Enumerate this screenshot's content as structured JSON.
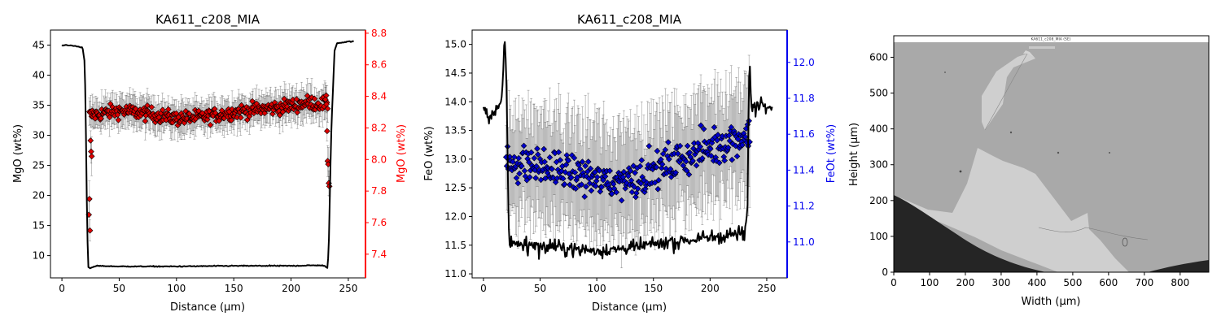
{
  "chart_data": [
    {
      "type": "line",
      "title": "KA611_c208_MIA",
      "xlabel": "Distance (µm)",
      "ylabel": "MgO (wt%)",
      "ylabel_right": "MgO (wt%)",
      "xlim": [
        -10,
        265
      ],
      "ylim": [
        6.3,
        47.5
      ],
      "ylim_right": [
        7.25,
        8.82
      ],
      "xticks": [
        0,
        50,
        100,
        150,
        200,
        250
      ],
      "yticks": [
        10,
        15,
        20,
        25,
        30,
        35,
        40,
        45
      ],
      "yticks_right": [
        7.4,
        7.6,
        7.8,
        8.0,
        8.2,
        8.4,
        8.6,
        8.8
      ],
      "right_axis_color": "#ff0000",
      "series": [
        {
          "axis": "left",
          "color": "#000000",
          "style": "line",
          "x": [
            0,
            10,
            18,
            20,
            21,
            22,
            23,
            25,
            30,
            50,
            100,
            150,
            200,
            225,
            229,
            231,
            232,
            233,
            235,
            238,
            240,
            250,
            255
          ],
          "y": [
            45.0,
            44.9,
            44.6,
            42.0,
            30.0,
            15.0,
            8.0,
            7.9,
            8.3,
            8.2,
            8.2,
            8.3,
            8.3,
            8.4,
            8.3,
            8.0,
            7.9,
            12.0,
            30.0,
            44.0,
            45.3,
            45.6,
            45.6
          ]
        },
        {
          "axis": "right",
          "color": "#dd0000",
          "style": "markers",
          "marker": "diamond",
          "errorbar_color": "#000000",
          "x_start": 24,
          "x_end": 232,
          "points": 330,
          "edge_points": [
            {
              "x": 23.5,
              "y": 7.65
            },
            {
              "x": 24.0,
              "y": 7.75
            },
            {
              "x": 24.5,
              "y": 7.55
            },
            {
              "x": 25.0,
              "y": 8.12
            },
            {
              "x": 25.5,
              "y": 8.05
            },
            {
              "x": 26.0,
              "y": 8.02
            },
            {
              "x": 230.0,
              "y": 8.38
            },
            {
              "x": 231.0,
              "y": 8.35
            },
            {
              "x": 231.5,
              "y": 8.18
            },
            {
              "x": 232.0,
              "y": 7.99
            },
            {
              "x": 232.5,
              "y": 7.97
            },
            {
              "x": 233.0,
              "y": 7.85
            },
            {
              "x": 233.5,
              "y": 7.83
            }
          ],
          "trend_x": [
            25,
            50,
            75,
            100,
            125,
            150,
            175,
            200,
            215,
            230
          ],
          "trend_y": [
            8.28,
            8.31,
            8.29,
            8.26,
            8.27,
            8.3,
            8.32,
            8.34,
            8.36,
            8.35
          ],
          "scatter_sd": 0.045,
          "error_sd": 0.09
        }
      ]
    },
    {
      "type": "line",
      "title": "KA611_c208_MIA",
      "xlabel": "Distance (µm)",
      "ylabel": "FeO (wt%)",
      "ylabel_right": "FeOt (wt%)",
      "xlim": [
        -10,
        268
      ],
      "ylim": [
        10.93,
        15.25
      ],
      "ylim_right": [
        10.8,
        12.18
      ],
      "xticks": [
        0,
        50,
        100,
        150,
        200,
        250
      ],
      "yticks": [
        11.0,
        11.5,
        12.0,
        12.5,
        13.0,
        13.5,
        14.0,
        14.5,
        15.0
      ],
      "yticks_right": [
        11.0,
        11.2,
        11.4,
        11.6,
        11.8,
        12.0
      ],
      "right_axis_color": "#0000ee",
      "series": [
        {
          "axis": "left",
          "color": "#000000",
          "style": "line",
          "x": [
            0,
            5,
            10,
            15,
            17,
            18,
            19,
            20,
            21,
            22,
            23,
            25,
            40,
            70,
            100,
            130,
            160,
            190,
            220,
            230,
            233,
            234,
            235,
            236,
            237,
            238,
            240,
            245,
            250,
            255
          ],
          "y": [
            13.9,
            13.75,
            13.8,
            13.9,
            14.3,
            14.8,
            15.05,
            14.7,
            13.5,
            12.0,
            11.5,
            11.55,
            11.5,
            11.45,
            11.4,
            11.45,
            11.55,
            11.6,
            11.7,
            11.7,
            12.0,
            14.0,
            14.7,
            14.2,
            13.8,
            13.9,
            13.9,
            14.0,
            13.95,
            13.9
          ],
          "noise": 0.12
        },
        {
          "axis": "right",
          "color": "#0000cc",
          "style": "markers",
          "marker": "diamond",
          "errorbar_color": "#000000",
          "x_start": 20,
          "x_end": 235,
          "points": 330,
          "trend_x": [
            20,
            50,
            80,
            110,
            140,
            170,
            200,
            235
          ],
          "trend_y": [
            11.45,
            11.42,
            11.38,
            11.33,
            11.37,
            11.45,
            11.53,
            11.6
          ],
          "scatter_sd": 0.1,
          "error_sd": 0.28
        }
      ]
    },
    {
      "type": "image",
      "xlabel": "Width (µm)",
      "ylabel": "Height (µm)",
      "xlim": [
        0,
        880
      ],
      "ylim": [
        0,
        660
      ],
      "xticks": [
        0,
        100,
        200,
        300,
        400,
        500,
        600,
        700,
        800
      ],
      "yticks": [
        0,
        100,
        200,
        300,
        400,
        500,
        600
      ],
      "image_caption": "KA611_c208_MIA (SE)"
    }
  ]
}
